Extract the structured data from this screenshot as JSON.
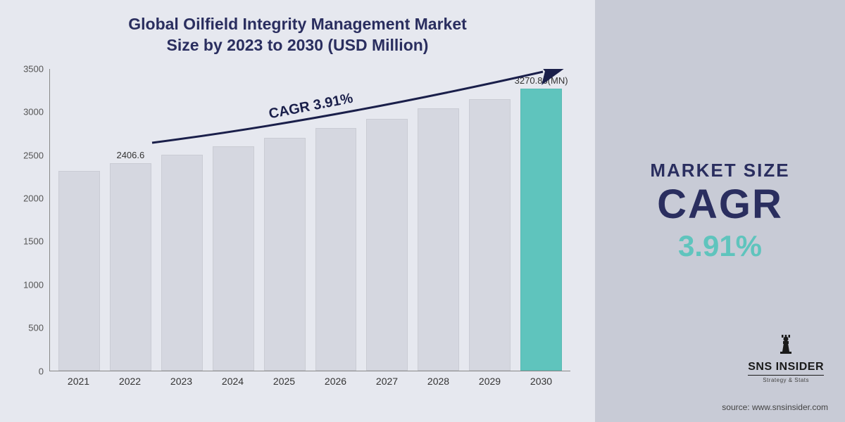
{
  "title_line1": "Global Oilfield Integrity Management Market",
  "title_line2": "Size by 2023 to 2030 (USD Million)",
  "chart": {
    "type": "bar",
    "categories": [
      "2021",
      "2022",
      "2023",
      "2024",
      "2025",
      "2026",
      "2027",
      "2028",
      "2029",
      "2030"
    ],
    "values": [
      2316,
      2406.6,
      2500,
      2600,
      2700,
      2810,
      2920,
      3040,
      3150,
      3270.86
    ],
    "bar_colors": [
      "#d5d7e0",
      "#d5d7e0",
      "#d5d7e0",
      "#d5d7e0",
      "#d5d7e0",
      "#d5d7e0",
      "#d5d7e0",
      "#d5d7e0",
      "#d5d7e0",
      "#5fc4bd"
    ],
    "value_labels": {
      "1": "2406.6",
      "9": "3270.86(MN)"
    },
    "ylim": [
      0,
      3500
    ],
    "ytick_step": 500,
    "yticks": [
      "0",
      "500",
      "1000",
      "1500",
      "2000",
      "2500",
      "3000",
      "3500"
    ],
    "background_color": "#e6e8ef",
    "bar_border": "rgba(0,0,0,0.05)",
    "axis_color": "#888888",
    "tick_fontsize": 13,
    "label_fontsize": 14,
    "title_fontsize": 23,
    "title_color": "#2a2e5f"
  },
  "cagr_curve": {
    "label": "CAGR  3.91%",
    "color": "#1a1f4a",
    "stroke_width": 3,
    "label_fontsize": 20,
    "label_rotation_deg": -11
  },
  "side": {
    "bg_color": "#c8cbd6",
    "title": "MARKET SIZE",
    "cagr_word": "CAGR",
    "percent": "3.91%",
    "title_color": "#2a2e5f",
    "percent_color": "#5fc4bd",
    "title_fontsize": 26,
    "cagr_fontsize": 58,
    "percent_fontsize": 42
  },
  "logo": {
    "name": "SNS INSIDER",
    "tagline": "Strategy & Stats"
  },
  "source": "source: www.snsinsider.com"
}
